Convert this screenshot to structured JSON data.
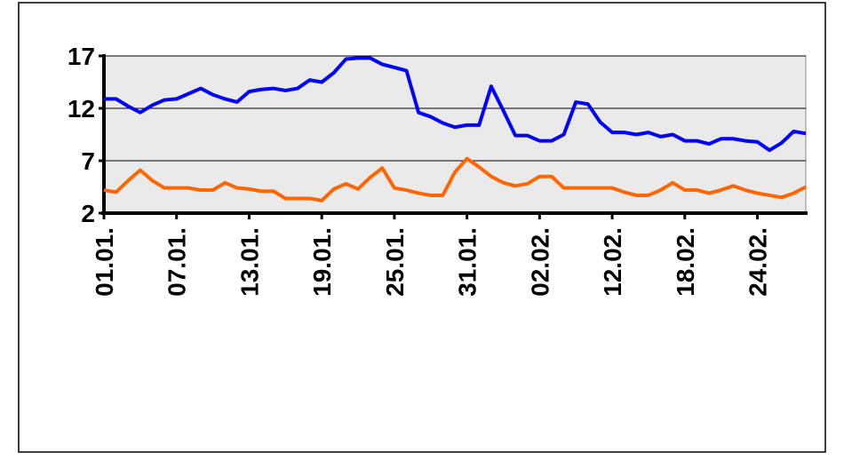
{
  "chart_data": {
    "type": "line",
    "categories": [
      "01.01.",
      null,
      null,
      null,
      null,
      null,
      "07.01.",
      null,
      null,
      null,
      null,
      null,
      "13.01.",
      null,
      null,
      null,
      null,
      null,
      "19.01.",
      null,
      null,
      null,
      null,
      null,
      "25.01.",
      null,
      null,
      null,
      null,
      null,
      "31.01.",
      null,
      null,
      null,
      null,
      null,
      "02.02.",
      null,
      null,
      null,
      null,
      null,
      "12.02.",
      null,
      null,
      null,
      null,
      null,
      "18.02.",
      null,
      null,
      null,
      null,
      null,
      "24.02.",
      null,
      null,
      null,
      null
    ],
    "series": [
      {
        "color": "#0000ff",
        "values": [
          12.9,
          12.9,
          12.2,
          11.6,
          12.3,
          12.8,
          12.9,
          13.4,
          13.9,
          13.3,
          12.9,
          12.6,
          13.6,
          13.8,
          13.9,
          13.7,
          13.9,
          14.7,
          14.5,
          15.4,
          16.7,
          16.8,
          16.8,
          16.2,
          15.9,
          15.6,
          11.6,
          11.2,
          10.6,
          10.2,
          10.4,
          10.4,
          14.1,
          11.8,
          9.4,
          9.4,
          8.9,
          8.9,
          9.5,
          12.6,
          12.4,
          10.7,
          9.7,
          9.7,
          9.5,
          9.7,
          9.3,
          9.5,
          8.9,
          8.9,
          8.6,
          9.1,
          9.1,
          8.9,
          8.8,
          8.0,
          8.7,
          9.8,
          9.6
        ]
      },
      {
        "color": "#ff6600",
        "values": [
          4.2,
          4.0,
          5.1,
          6.1,
          5.1,
          4.4,
          4.4,
          4.4,
          4.2,
          4.2,
          4.9,
          4.4,
          4.3,
          4.1,
          4.1,
          3.4,
          3.4,
          3.4,
          3.2,
          4.3,
          4.8,
          4.3,
          5.4,
          6.3,
          4.4,
          4.2,
          3.9,
          3.7,
          3.7,
          5.9,
          7.2,
          6.4,
          5.5,
          4.9,
          4.6,
          4.8,
          5.5,
          5.5,
          4.4,
          4.4,
          4.4,
          4.4,
          4.4,
          4.0,
          3.7,
          3.7,
          4.2,
          4.9,
          4.2,
          4.2,
          3.9,
          4.2,
          4.6,
          4.2,
          3.9,
          3.7,
          3.5,
          3.9,
          4.5
        ]
      }
    ],
    "ylim": [
      2,
      17
    ],
    "yticks": [
      2,
      7,
      12,
      17
    ],
    "grid": true
  }
}
